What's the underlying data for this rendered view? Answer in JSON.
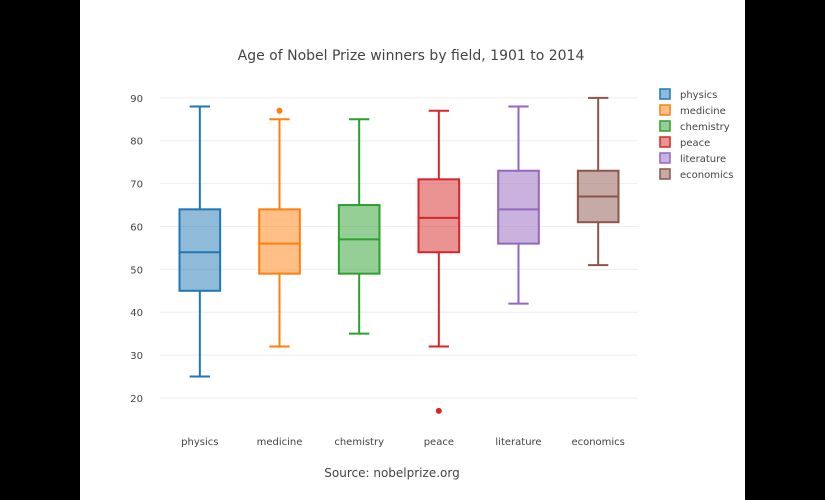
{
  "chart_data": {
    "type": "box",
    "title": "Age of Nobel Prize winners by field, 1901 to 2014",
    "source": "Source: nobelprize.org",
    "ylim": [
      13,
      93
    ],
    "yticks": [
      20,
      30,
      40,
      50,
      60,
      70,
      80,
      90
    ],
    "grid": true,
    "legend_position": "top-right",
    "series": [
      {
        "name": "physics",
        "category": "physics",
        "color": "#1f77b4",
        "min": 25,
        "q1": 45,
        "median": 54,
        "q3": 64,
        "max": 88,
        "outliers": []
      },
      {
        "name": "medicine",
        "category": "medicine",
        "color": "#ff7f0e",
        "min": 32,
        "q1": 49,
        "median": 56,
        "q3": 64,
        "max": 85,
        "outliers": [
          87
        ]
      },
      {
        "name": "chemistry",
        "category": "chemistry",
        "color": "#2ca02c",
        "min": 35,
        "q1": 49,
        "median": 57,
        "q3": 65,
        "max": 85,
        "outliers": []
      },
      {
        "name": "peace",
        "category": "peace",
        "color": "#d62728",
        "min": 32,
        "q1": 54,
        "median": 62,
        "q3": 71,
        "max": 87,
        "outliers": [
          17
        ]
      },
      {
        "name": "literature",
        "category": "literature",
        "color": "#9467bd",
        "min": 42,
        "q1": 56,
        "median": 64,
        "q3": 73,
        "max": 88,
        "outliers": []
      },
      {
        "name": "economics",
        "category": "economics",
        "color": "#8c564b",
        "min": 51,
        "q1": 61,
        "median": 67,
        "q3": 73,
        "max": 90,
        "outliers": []
      }
    ]
  }
}
